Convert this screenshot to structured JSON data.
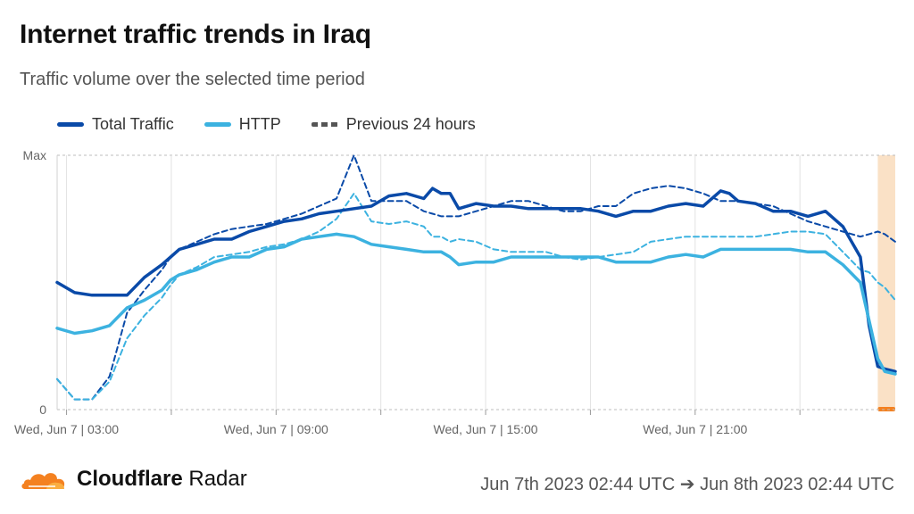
{
  "header": {
    "title": "Internet traffic trends in Iraq",
    "subtitle": "Traffic volume over the selected time period"
  },
  "legend": {
    "items": [
      {
        "label": "Total Traffic",
        "color": "#0a4aa8",
        "style": "solid"
      },
      {
        "label": "HTTP",
        "color": "#3cb2e0",
        "style": "solid"
      },
      {
        "label": "Previous 24 hours",
        "color": "#555555",
        "style": "dashed"
      }
    ]
  },
  "footer": {
    "brand_bold": "Cloudflare",
    "brand_light": "Radar",
    "date_range": "Jun 7th 2023 02:44 UTC ➔ Jun 8th 2023 02:44 UTC"
  },
  "chart_data": {
    "type": "line",
    "y_axis": {
      "labels": [
        "Max",
        "0"
      ],
      "range": [
        0,
        100
      ],
      "unit": "percent of max"
    },
    "x_axis": {
      "range_hours": [
        0,
        24
      ],
      "ticks": [
        {
          "hour": 0.27,
          "label": "Wed, Jun 7 | 03:00"
        },
        {
          "hour": 6.27,
          "label": "Wed, Jun 7 | 09:00"
        },
        {
          "hour": 12.27,
          "label": "Wed, Jun 7 | 15:00"
        },
        {
          "hour": 18.27,
          "label": "Wed, Jun 7 | 21:00"
        }
      ]
    },
    "grid": true,
    "highlight_period": {
      "start_hour": 23.5,
      "end_hour": 24,
      "color": "#f9d9b8"
    },
    "series": [
      {
        "name": "Total Traffic",
        "color": "#0a4aa8",
        "dash": false,
        "x": [
          0,
          0.5,
          1,
          1.5,
          2,
          2.5,
          3,
          3.25,
          3.5,
          4,
          4.5,
          5,
          5.5,
          6,
          6.5,
          7,
          7.5,
          8,
          8.5,
          9,
          9.5,
          10,
          10.5,
          10.75,
          11,
          11.25,
          11.5,
          12,
          12.5,
          13,
          13.5,
          14,
          14.5,
          15,
          15.5,
          16,
          16.5,
          17,
          17.5,
          18,
          18.5,
          19,
          19.25,
          19.5,
          20,
          20.5,
          21,
          21.5,
          22,
          22.5,
          23,
          23.25,
          23.5,
          23.7,
          24
        ],
        "values": [
          50,
          46,
          45,
          45,
          45,
          52,
          57,
          60,
          63,
          65,
          67,
          67,
          70,
          72,
          74,
          75,
          77,
          78,
          79,
          80,
          84,
          85,
          83,
          87,
          85,
          85,
          79,
          81,
          80,
          80,
          79,
          79,
          79,
          79,
          78,
          76,
          78,
          78,
          80,
          81,
          80,
          86,
          85,
          82,
          81,
          78,
          78,
          76,
          78,
          72,
          60,
          33,
          17,
          16,
          15
        ]
      },
      {
        "name": "HTTP",
        "color": "#3cb2e0",
        "dash": false,
        "x": [
          0,
          0.5,
          1,
          1.5,
          2,
          2.5,
          3,
          3.25,
          3.5,
          4,
          4.5,
          5,
          5.5,
          6,
          6.5,
          7,
          7.5,
          8,
          8.5,
          9,
          9.5,
          10,
          10.5,
          10.75,
          11,
          11.25,
          11.5,
          12,
          12.5,
          13,
          13.5,
          14,
          14.5,
          15,
          15.5,
          16,
          16.5,
          17,
          17.5,
          18,
          18.5,
          19,
          19.25,
          19.5,
          20,
          20.5,
          21,
          21.5,
          22,
          22.5,
          23,
          23.25,
          23.5,
          23.7,
          24
        ],
        "values": [
          32,
          30,
          31,
          33,
          40,
          43,
          47,
          51,
          53,
          55,
          58,
          60,
          60,
          63,
          64,
          67,
          68,
          69,
          68,
          65,
          64,
          63,
          62,
          62,
          62,
          60,
          57,
          58,
          58,
          60,
          60,
          60,
          60,
          60,
          60,
          58,
          58,
          58,
          60,
          61,
          60,
          63,
          63,
          63,
          63,
          63,
          63,
          62,
          62,
          57,
          50,
          35,
          20,
          15,
          14
        ]
      },
      {
        "name": "Previous 24 hours",
        "color": "#0a4aa8",
        "dash": true,
        "x": [
          0,
          0.5,
          1,
          1.5,
          2,
          2.5,
          3,
          3.25,
          3.5,
          4,
          4.5,
          5,
          5.5,
          6,
          6.5,
          7,
          7.5,
          8,
          8.5,
          9,
          9.5,
          10,
          10.5,
          10.75,
          11,
          11.25,
          11.5,
          12,
          12.5,
          13,
          13.5,
          14,
          14.5,
          15,
          15.5,
          16,
          16.5,
          17,
          17.5,
          18,
          18.5,
          19,
          19.25,
          19.5,
          20,
          20.5,
          21,
          21.5,
          22,
          22.5,
          23,
          23.25,
          23.5,
          23.7,
          24
        ],
        "values": [
          12,
          4,
          4,
          13,
          38,
          47,
          55,
          60,
          63,
          66,
          69,
          71,
          72,
          73,
          75,
          77,
          80,
          83,
          100,
          82,
          82,
          82,
          78,
          77,
          76,
          76,
          76,
          78,
          80,
          82,
          82,
          80,
          78,
          78,
          80,
          80,
          85,
          87,
          88,
          87,
          85,
          82,
          82,
          82,
          81,
          80,
          77,
          74,
          72,
          70,
          68,
          69,
          70,
          69,
          66
        ]
      },
      {
        "name": "Previous 24 hours (HTTP)",
        "color": "#3cb2e0",
        "dash": true,
        "x": [
          0,
          0.5,
          1,
          1.5,
          2,
          2.5,
          3,
          3.25,
          3.5,
          4,
          4.5,
          5,
          5.5,
          6,
          6.5,
          7,
          7.5,
          8,
          8.5,
          9,
          9.5,
          10,
          10.5,
          10.75,
          11,
          11.25,
          11.5,
          12,
          12.5,
          13,
          13.5,
          14,
          14.5,
          15,
          15.5,
          16,
          16.5,
          17,
          17.5,
          18,
          18.5,
          19,
          19.25,
          19.5,
          20,
          20.5,
          21,
          21.5,
          22,
          22.5,
          23,
          23.25,
          23.5,
          23.7,
          24
        ],
        "values": [
          12,
          4,
          4,
          11,
          28,
          37,
          44,
          49,
          53,
          56,
          60,
          61,
          62,
          64,
          65,
          67,
          70,
          75,
          85,
          74,
          73,
          74,
          72,
          68,
          68,
          66,
          67,
          66,
          63,
          62,
          62,
          62,
          60,
          59,
          60,
          61,
          62,
          66,
          67,
          68,
          68,
          68,
          68,
          68,
          68,
          69,
          70,
          70,
          69,
          62,
          55,
          54,
          50,
          48,
          43
        ]
      }
    ]
  }
}
